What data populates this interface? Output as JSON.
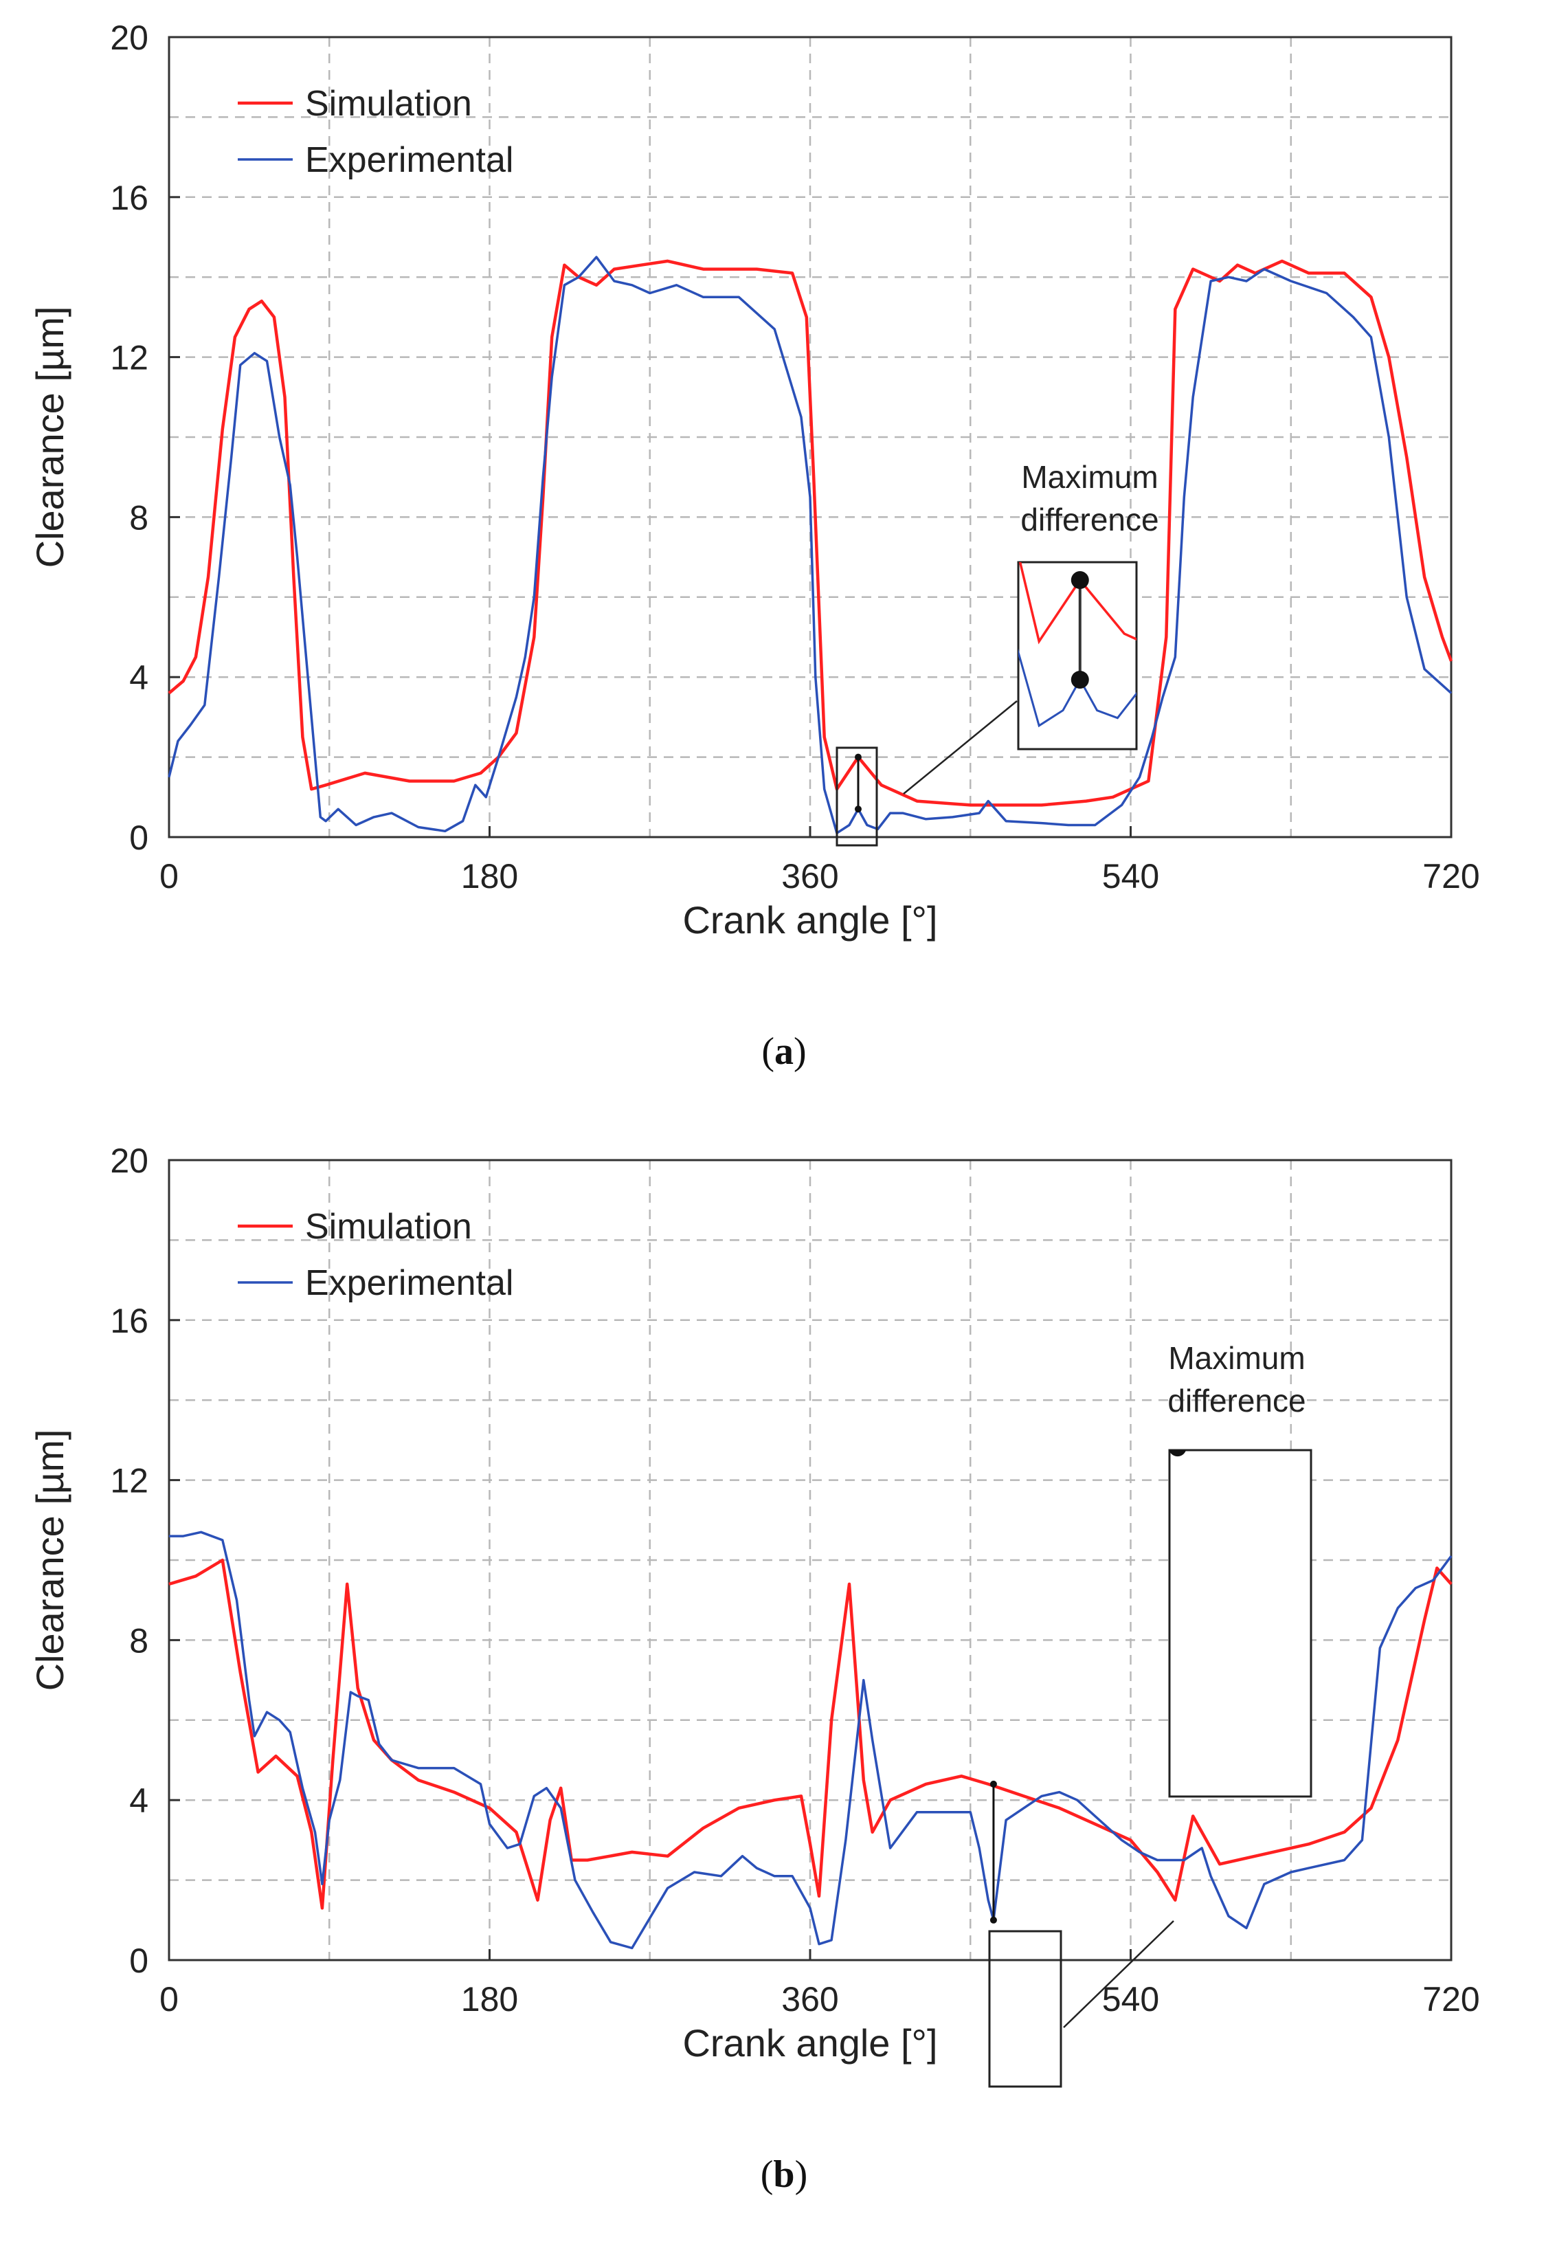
{
  "chart_data": [
    {
      "type": "line",
      "caption_letter": "a",
      "title": "",
      "xlabel": "Crank angle [°]",
      "ylabel": "Clearance [µm]",
      "xlim": [
        0,
        720
      ],
      "ylim": [
        0,
        20
      ],
      "xticks": [
        0,
        180,
        360,
        540,
        720
      ],
      "yticks": [
        0,
        4,
        8,
        12,
        16,
        20
      ],
      "grid": true,
      "legend_position": "top-left",
      "annotation": "Maximum difference",
      "annotation_lines": [
        "Maximum",
        "difference"
      ],
      "max_diff": {
        "x": 387,
        "y_sim": 2.0,
        "y_exp": 0.7
      },
      "series": [
        {
          "name": "Simulation",
          "color": "#ff2020",
          "x": [
            0,
            8,
            15,
            22,
            30,
            37,
            45,
            52,
            59,
            65,
            70,
            75,
            80,
            88,
            110,
            135,
            160,
            175,
            185,
            195,
            205,
            210,
            215,
            222,
            230,
            240,
            250,
            265,
            280,
            300,
            330,
            350,
            358,
            362,
            368,
            375,
            387,
            400,
            420,
            450,
            490,
            515,
            530,
            550,
            560,
            565,
            575,
            590,
            600,
            610,
            625,
            640,
            660,
            675,
            685,
            695,
            705,
            715,
            720
          ],
          "y": [
            3.6,
            3.9,
            4.5,
            6.5,
            10.2,
            12.5,
            13.2,
            13.4,
            13.0,
            11.0,
            6.5,
            2.5,
            1.2,
            1.3,
            1.6,
            1.4,
            1.4,
            1.6,
            2.0,
            2.6,
            5.0,
            8.5,
            12.5,
            14.3,
            14.0,
            13.8,
            14.2,
            14.3,
            14.4,
            14.2,
            14.2,
            14.1,
            13.0,
            9.0,
            2.5,
            1.2,
            2.0,
            1.3,
            0.9,
            0.8,
            0.8,
            0.9,
            1.0,
            1.4,
            5.0,
            13.2,
            14.2,
            13.9,
            14.3,
            14.1,
            14.4,
            14.1,
            14.1,
            13.5,
            12.0,
            9.5,
            6.5,
            5.0,
            4.4
          ]
        },
        {
          "name": "Experimental",
          "color": "#2a50b8",
          "x": [
            0,
            5,
            12,
            20,
            28,
            35,
            40,
            48,
            55,
            62,
            68,
            72,
            78,
            85,
            88,
            95,
            100,
            105,
            115,
            125,
            140,
            155,
            165,
            172,
            178,
            185,
            195,
            200,
            205,
            210,
            215,
            222,
            230,
            240,
            250,
            260,
            270,
            285,
            300,
            320,
            340,
            355,
            360,
            363,
            368,
            375,
            382,
            387,
            392,
            398,
            405,
            412,
            425,
            440,
            455,
            460,
            470,
            490,
            505,
            520,
            535,
            545,
            552,
            558,
            565,
            570,
            575,
            585,
            595,
            605,
            615,
            630,
            650,
            665,
            675,
            685,
            695,
            705,
            715,
            720
          ],
          "y": [
            1.5,
            2.4,
            2.8,
            3.3,
            6.5,
            9.5,
            11.8,
            12.1,
            11.9,
            10.0,
            8.8,
            7.0,
            4.0,
            0.5,
            0.4,
            0.7,
            0.5,
            0.3,
            0.5,
            0.6,
            0.25,
            0.15,
            0.4,
            1.3,
            1.0,
            2.0,
            3.5,
            4.5,
            6.0,
            9.0,
            11.5,
            13.8,
            14.0,
            14.5,
            13.9,
            13.8,
            13.6,
            13.8,
            13.5,
            13.5,
            12.7,
            10.5,
            8.5,
            4.0,
            1.2,
            0.1,
            0.3,
            0.7,
            0.3,
            0.2,
            0.6,
            0.6,
            0.45,
            0.5,
            0.6,
            0.9,
            0.4,
            0.35,
            0.3,
            0.3,
            0.8,
            1.5,
            2.5,
            3.5,
            4.5,
            8.5,
            11.0,
            13.9,
            14.0,
            13.9,
            14.2,
            13.9,
            13.6,
            13.0,
            12.5,
            10.0,
            6.0,
            4.2,
            3.8,
            3.6
          ]
        }
      ]
    },
    {
      "type": "line",
      "caption_letter": "b",
      "title": "",
      "xlabel": "Crank angle [°]",
      "ylabel": "Clearance [µm]",
      "xlim": [
        0,
        720
      ],
      "ylim": [
        0,
        20
      ],
      "xticks": [
        0,
        180,
        360,
        540,
        720
      ],
      "yticks": [
        0,
        4,
        8,
        12,
        16,
        20
      ],
      "grid": true,
      "legend_position": "top-left",
      "annotation": "Maximum difference",
      "annotation_lines": [
        "Maximum",
        "difference"
      ],
      "max_diff": {
        "x": 463,
        "y_sim": 4.4,
        "y_exp": 1.0
      },
      "series": [
        {
          "name": "Simulation",
          "color": "#ff2020",
          "x": [
            0,
            15,
            30,
            40,
            50,
            60,
            72,
            80,
            86,
            92,
            100,
            106,
            115,
            125,
            140,
            160,
            180,
            195,
            207,
            214,
            220,
            226,
            235,
            260,
            280,
            300,
            320,
            340,
            355,
            360,
            365,
            372,
            382,
            390,
            395,
            405,
            425,
            445,
            460,
            480,
            500,
            520,
            540,
            555,
            565,
            575,
            590,
            610,
            640,
            660,
            675,
            690,
            705,
            712,
            720
          ],
          "y": [
            9.4,
            9.6,
            10.0,
            7.2,
            4.7,
            5.1,
            4.6,
            3.2,
            1.3,
            5.0,
            9.4,
            6.8,
            5.5,
            5.0,
            4.5,
            4.2,
            3.8,
            3.2,
            1.5,
            3.5,
            4.3,
            2.5,
            2.5,
            2.7,
            2.6,
            3.3,
            3.8,
            4.0,
            4.1,
            2.9,
            1.6,
            6.0,
            9.4,
            4.5,
            3.2,
            4.0,
            4.4,
            4.6,
            4.4,
            4.1,
            3.8,
            3.4,
            3.0,
            2.2,
            1.5,
            3.6,
            2.4,
            2.6,
            2.9,
            3.2,
            3.8,
            5.5,
            8.5,
            9.8,
            9.4
          ]
        },
        {
          "name": "Experimental",
          "color": "#2a50b8",
          "x": [
            0,
            8,
            18,
            30,
            38,
            45,
            48,
            55,
            62,
            68,
            75,
            82,
            86,
            90,
            96,
            102,
            106,
            112,
            118,
            125,
            140,
            160,
            175,
            180,
            190,
            197,
            205,
            212,
            220,
            228,
            238,
            248,
            260,
            280,
            295,
            310,
            322,
            330,
            340,
            350,
            360,
            365,
            372,
            380,
            390,
            395,
            405,
            420,
            445,
            450,
            455,
            460,
            463,
            470,
            480,
            490,
            500,
            510,
            520,
            535,
            545,
            555,
            565,
            570,
            580,
            585,
            595,
            605,
            615,
            630,
            640,
            660,
            670,
            680,
            690,
            700,
            710,
            720
          ],
          "y": [
            10.6,
            10.6,
            10.7,
            10.5,
            9.0,
            6.5,
            5.6,
            6.2,
            6.0,
            5.7,
            4.3,
            3.2,
            1.9,
            3.5,
            4.5,
            6.7,
            6.6,
            6.5,
            5.4,
            5.0,
            4.8,
            4.8,
            4.4,
            3.4,
            2.8,
            2.9,
            4.1,
            4.3,
            3.8,
            2.0,
            1.2,
            0.45,
            0.3,
            1.8,
            2.2,
            2.1,
            2.6,
            2.3,
            2.1,
            2.1,
            1.3,
            0.4,
            0.5,
            3.0,
            7.0,
            5.5,
            2.8,
            3.7,
            3.7,
            3.7,
            2.8,
            1.5,
            1.0,
            3.5,
            3.8,
            4.1,
            4.2,
            4.0,
            3.6,
            3.0,
            2.7,
            2.5,
            2.5,
            2.5,
            2.8,
            2.1,
            1.1,
            0.8,
            1.9,
            2.2,
            2.3,
            2.5,
            3.0,
            7.8,
            8.8,
            9.3,
            9.5,
            10.1
          ]
        }
      ]
    }
  ]
}
